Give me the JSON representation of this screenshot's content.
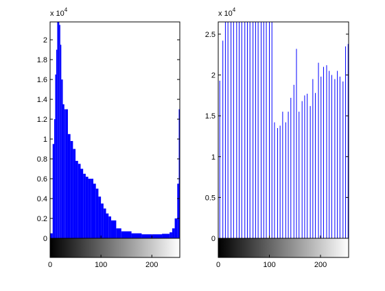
{
  "chart_data": [
    {
      "type": "bar",
      "title": "",
      "xlabel": "",
      "ylabel": "",
      "multiplier_label": {
        "base": "x 10",
        "exponent": "4"
      },
      "xlim": [
        0,
        255
      ],
      "ylim": [
        0,
        2.18
      ],
      "x_ticks": [
        0,
        100,
        200
      ],
      "y_ticks": [
        0,
        0.2,
        0.4,
        0.6,
        0.8,
        1,
        1.2,
        1.4,
        1.6,
        1.8,
        2
      ],
      "y_tick_labels": [
        "0",
        "0.2",
        "0.4",
        "0.6",
        "0.8",
        "1",
        "1.2",
        "1.4",
        "1.6",
        "1.8",
        "2"
      ],
      "colorbar": "grayscale 0-255",
      "bar_color": "#0000ff",
      "x": [
        0,
        5,
        8,
        10,
        12,
        14,
        16,
        18,
        20,
        22,
        25,
        28,
        30,
        35,
        40,
        45,
        50,
        55,
        60,
        65,
        70,
        75,
        80,
        85,
        90,
        95,
        100,
        105,
        110,
        115,
        120,
        130,
        140,
        160,
        180,
        200,
        220,
        235,
        240,
        245,
        250,
        253,
        255
      ],
      "values": [
        0.05,
        0.95,
        1.2,
        1.65,
        1.9,
        2.18,
        2.25,
        2.15,
        1.95,
        1.6,
        1.35,
        1.3,
        1.3,
        1.05,
        0.98,
        0.9,
        0.78,
        0.75,
        0.7,
        0.65,
        0.62,
        0.6,
        0.6,
        0.55,
        0.5,
        0.42,
        0.35,
        0.3,
        0.25,
        0.22,
        0.18,
        0.1,
        0.07,
        0.05,
        0.04,
        0.04,
        0.045,
        0.06,
        0.1,
        0.2,
        0.55,
        1.3,
        1.55
      ]
    },
    {
      "type": "bar",
      "title": "",
      "xlabel": "",
      "ylabel": "",
      "multiplier_label": {
        "base": "x 10",
        "exponent": "4"
      },
      "xlim": [
        0,
        255
      ],
      "ylim": [
        0,
        2.65
      ],
      "x_ticks": [
        0,
        100,
        200
      ],
      "y_ticks": [
        0,
        0.5,
        1,
        1.5,
        2,
        2.5
      ],
      "y_tick_labels": [
        "0",
        "0.5",
        "1",
        "1.5",
        "2",
        "2.5"
      ],
      "colorbar": "grayscale 0-255",
      "bar_color": "#0000ff",
      "x": [
        3,
        9,
        14,
        19,
        25,
        30,
        36,
        41,
        46,
        52,
        57,
        62,
        68,
        73,
        78,
        84,
        89,
        94,
        100,
        105,
        110,
        116,
        121,
        126,
        132,
        137,
        142,
        148,
        153,
        158,
        164,
        169,
        174,
        180,
        185,
        190,
        196,
        201,
        206,
        212,
        217,
        222,
        228,
        233,
        238,
        244,
        249,
        254
      ],
      "values": [
        1.93,
        2.42,
        2.65,
        2.65,
        2.65,
        2.65,
        2.65,
        2.65,
        2.65,
        2.65,
        2.65,
        2.65,
        2.65,
        2.65,
        2.65,
        2.65,
        2.65,
        2.65,
        2.65,
        2.65,
        1.42,
        1.35,
        1.38,
        1.55,
        1.42,
        1.55,
        1.72,
        1.88,
        2.32,
        1.55,
        1.68,
        1.75,
        1.77,
        1.62,
        1.95,
        1.78,
        2.15,
        1.98,
        2.1,
        2.12,
        2.05,
        2.0,
        1.95,
        2.05,
        1.98,
        1.92,
        2.35,
        2.38
      ]
    }
  ]
}
